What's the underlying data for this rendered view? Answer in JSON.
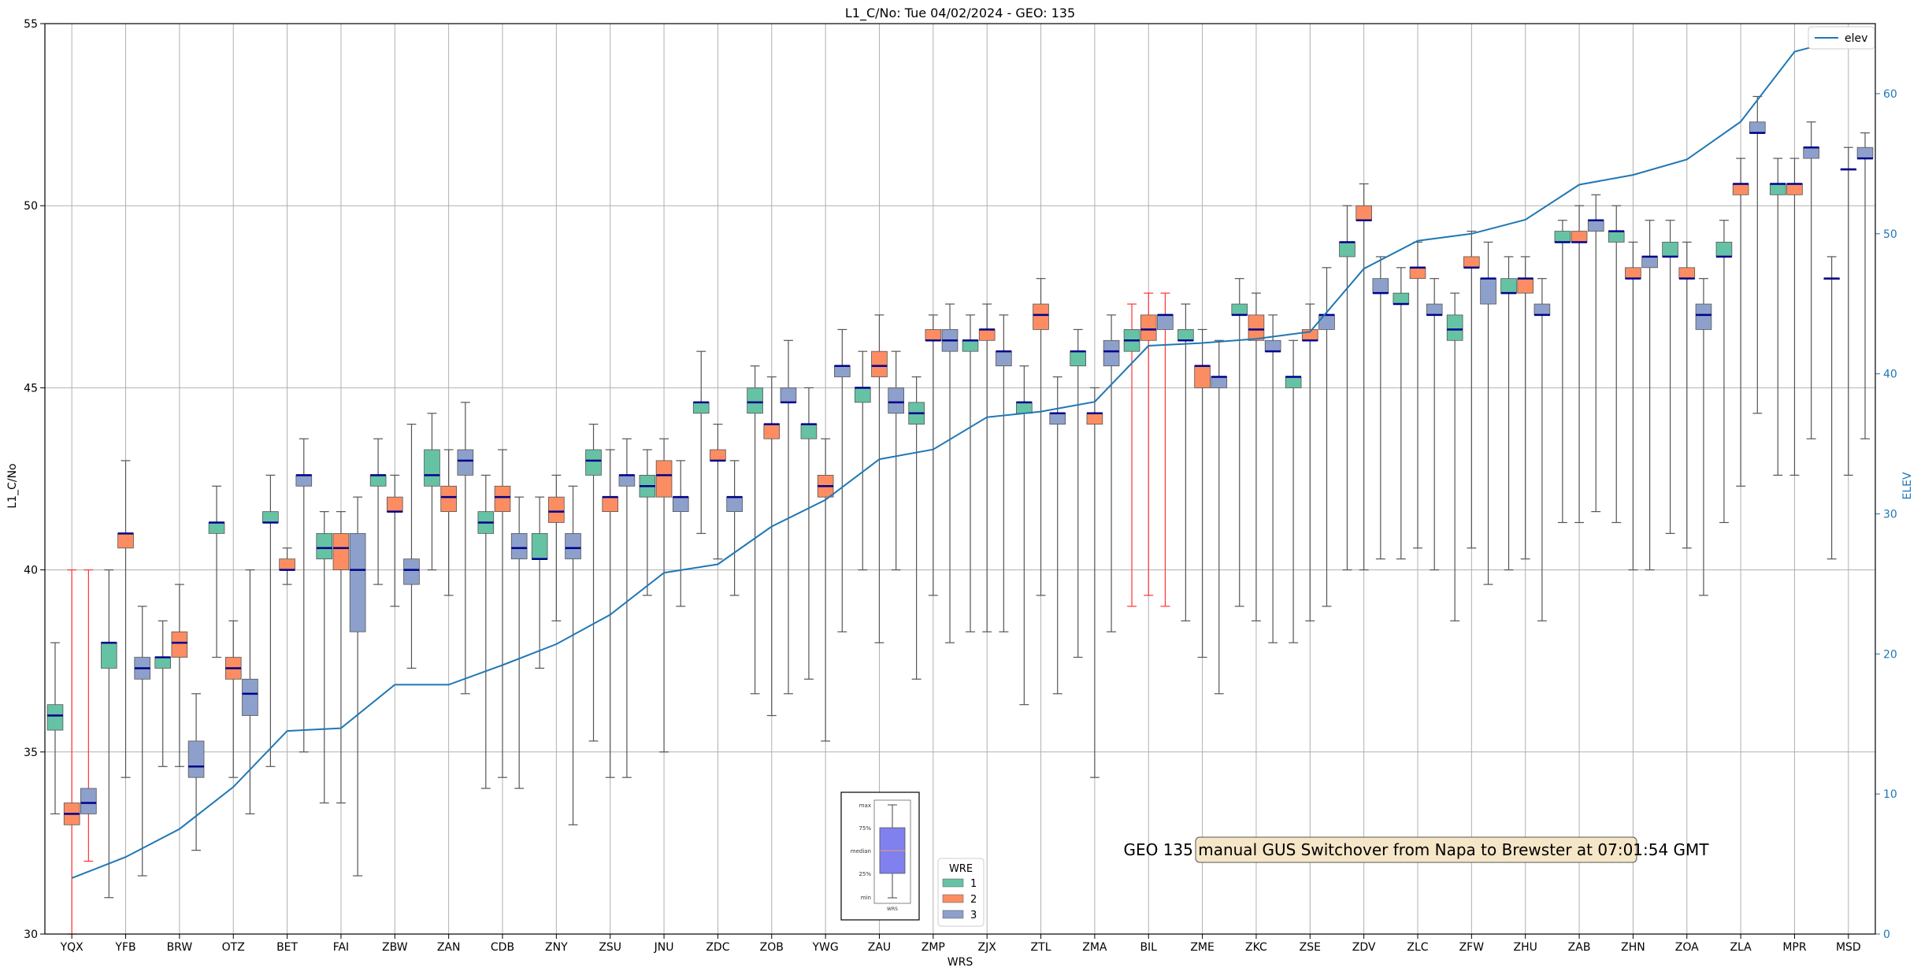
{
  "chart_data": {
    "type": "box",
    "title": "L1_C/No: Tue 04/02/2024 - GEO: 135",
    "xlabel": "WRS",
    "ylabel": "L1_C/No",
    "y2label": "ELEV",
    "ylim": [
      30,
      55
    ],
    "y2lim": [
      0,
      65
    ],
    "yticks": [
      "30",
      "35",
      "40",
      "45",
      "50",
      "55"
    ],
    "y2ticks": [
      "0",
      "10",
      "20",
      "30",
      "40",
      "50",
      "60"
    ],
    "grid": true,
    "legend_position": "top-right",
    "colors": {
      "1": "#66c2a5",
      "2": "#fc8d62",
      "3": "#8da0cb",
      "elev": "#1f77b4",
      "median": "#00008b",
      "bad_whisker": "#ff3333"
    },
    "categories": [
      "YQX",
      "YFB",
      "BRW",
      "OTZ",
      "BET",
      "FAI",
      "ZBW",
      "ZAN",
      "CDB",
      "ZNY",
      "ZSU",
      "JNU",
      "ZDC",
      "ZOB",
      "YWG",
      "ZAU",
      "ZMP",
      "ZJX",
      "ZTL",
      "ZMA",
      "BIL",
      "ZME",
      "ZKC",
      "ZSE",
      "ZDV",
      "ZLC",
      "ZFW",
      "ZHU",
      "ZAB",
      "ZHN",
      "ZOA",
      "ZLA",
      "MPR",
      "MSD"
    ],
    "boxes": [
      [
        {
          "wre": 1,
          "min": 33.3,
          "q1": 35.6,
          "med": 36.0,
          "q3": 36.3,
          "max": 38.0
        },
        {
          "wre": 2,
          "min": 30.0,
          "q1": 33.0,
          "med": 33.3,
          "q3": 33.6,
          "max": 40.0,
          "red": true
        },
        {
          "wre": 3,
          "min": 32.0,
          "q1": 33.3,
          "med": 33.6,
          "q3": 34.0,
          "max": 40.0,
          "red": true
        }
      ],
      [
        {
          "wre": 1,
          "min": 31.0,
          "q1": 37.3,
          "med": 38.0,
          "q3": 38.0,
          "max": 40.0
        },
        {
          "wre": 2,
          "min": 34.3,
          "q1": 40.6,
          "med": 41.0,
          "q3": 41.0,
          "max": 43.0
        },
        {
          "wre": 3,
          "min": 31.6,
          "q1": 37.0,
          "med": 37.3,
          "q3": 37.6,
          "max": 39.0
        }
      ],
      [
        {
          "wre": 1,
          "min": 34.6,
          "q1": 37.3,
          "med": 37.6,
          "q3": 37.6,
          "max": 38.6
        },
        {
          "wre": 2,
          "min": 34.6,
          "q1": 37.6,
          "med": 38.0,
          "q3": 38.3,
          "max": 39.6
        },
        {
          "wre": 3,
          "min": 32.3,
          "q1": 34.3,
          "med": 34.6,
          "q3": 35.3,
          "max": 36.6
        }
      ],
      [
        {
          "wre": 1,
          "min": 37.6,
          "q1": 41.0,
          "med": 41.3,
          "q3": 41.3,
          "max": 42.3
        },
        {
          "wre": 2,
          "min": 34.3,
          "q1": 37.0,
          "med": 37.3,
          "q3": 37.6,
          "max": 38.6
        },
        {
          "wre": 3,
          "min": 33.3,
          "q1": 36.0,
          "med": 36.6,
          "q3": 37.0,
          "max": 40.0
        }
      ],
      [
        {
          "wre": 1,
          "min": 34.6,
          "q1": 41.3,
          "med": 41.3,
          "q3": 41.6,
          "max": 42.6
        },
        {
          "wre": 2,
          "min": 39.6,
          "q1": 40.0,
          "med": 40.0,
          "q3": 40.3,
          "max": 40.6
        },
        {
          "wre": 3,
          "min": 35.0,
          "q1": 42.3,
          "med": 42.6,
          "q3": 42.6,
          "max": 43.6
        }
      ],
      [
        {
          "wre": 1,
          "min": 33.6,
          "q1": 40.3,
          "med": 40.6,
          "q3": 41.0,
          "max": 41.6
        },
        {
          "wre": 2,
          "min": 33.6,
          "q1": 40.0,
          "med": 40.6,
          "q3": 41.0,
          "max": 41.6
        },
        {
          "wre": 3,
          "min": 31.6,
          "q1": 38.3,
          "med": 40.0,
          "q3": 41.0,
          "max": 42.0
        }
      ],
      [
        {
          "wre": 1,
          "min": 39.6,
          "q1": 42.3,
          "med": 42.6,
          "q3": 42.6,
          "max": 43.6
        },
        {
          "wre": 2,
          "min": 39.0,
          "q1": 41.6,
          "med": 41.6,
          "q3": 42.0,
          "max": 42.6
        },
        {
          "wre": 3,
          "min": 37.3,
          "q1": 39.6,
          "med": 40.0,
          "q3": 40.3,
          "max": 44.0
        }
      ],
      [
        {
          "wre": 1,
          "min": 40.0,
          "q1": 42.3,
          "med": 42.6,
          "q3": 43.3,
          "max": 44.3
        },
        {
          "wre": 2,
          "min": 39.3,
          "q1": 41.6,
          "med": 42.0,
          "q3": 42.3,
          "max": 43.3
        },
        {
          "wre": 3,
          "min": 36.6,
          "q1": 42.6,
          "med": 43.0,
          "q3": 43.3,
          "max": 44.6
        }
      ],
      [
        {
          "wre": 1,
          "min": 34.0,
          "q1": 41.0,
          "med": 41.3,
          "q3": 41.6,
          "max": 42.6
        },
        {
          "wre": 2,
          "min": 34.3,
          "q1": 41.6,
          "med": 42.0,
          "q3": 42.3,
          "max": 43.3
        },
        {
          "wre": 3,
          "min": 34.0,
          "q1": 40.3,
          "med": 40.6,
          "q3": 41.0,
          "max": 42.0
        }
      ],
      [
        {
          "wre": 1,
          "min": 37.3,
          "q1": 40.3,
          "med": 40.3,
          "q3": 41.0,
          "max": 42.0
        },
        {
          "wre": 2,
          "min": 38.6,
          "q1": 41.3,
          "med": 41.6,
          "q3": 42.0,
          "max": 42.6
        },
        {
          "wre": 3,
          "min": 33.0,
          "q1": 40.3,
          "med": 40.6,
          "q3": 41.0,
          "max": 42.3
        }
      ],
      [
        {
          "wre": 1,
          "min": 35.3,
          "q1": 42.6,
          "med": 43.0,
          "q3": 43.3,
          "max": 44.0
        },
        {
          "wre": 2,
          "min": 34.3,
          "q1": 41.6,
          "med": 42.0,
          "q3": 42.0,
          "max": 43.3
        },
        {
          "wre": 3,
          "min": 34.3,
          "q1": 42.3,
          "med": 42.6,
          "q3": 42.6,
          "max": 43.6
        }
      ],
      [
        {
          "wre": 1,
          "min": 39.3,
          "q1": 42.0,
          "med": 42.3,
          "q3": 42.6,
          "max": 43.3
        },
        {
          "wre": 2,
          "min": 35.0,
          "q1": 42.0,
          "med": 42.6,
          "q3": 43.0,
          "max": 43.6
        },
        {
          "wre": 3,
          "min": 39.0,
          "q1": 41.6,
          "med": 42.0,
          "q3": 42.0,
          "max": 43.0
        }
      ],
      [
        {
          "wre": 1,
          "min": 41.0,
          "q1": 44.3,
          "med": 44.6,
          "q3": 44.6,
          "max": 46.0
        },
        {
          "wre": 2,
          "min": 40.3,
          "q1": 43.0,
          "med": 43.0,
          "q3": 43.3,
          "max": 44.0
        },
        {
          "wre": 3,
          "min": 39.3,
          "q1": 41.6,
          "med": 42.0,
          "q3": 42.0,
          "max": 43.0
        }
      ],
      [
        {
          "wre": 1,
          "min": 36.6,
          "q1": 44.3,
          "med": 44.6,
          "q3": 45.0,
          "max": 45.6
        },
        {
          "wre": 2,
          "min": 36.0,
          "q1": 43.6,
          "med": 44.0,
          "q3": 44.0,
          "max": 45.3
        },
        {
          "wre": 3,
          "min": 36.6,
          "q1": 44.6,
          "med": 44.6,
          "q3": 45.0,
          "max": 46.3
        }
      ],
      [
        {
          "wre": 1,
          "min": 37.0,
          "q1": 43.6,
          "med": 44.0,
          "q3": 44.0,
          "max": 45.0
        },
        {
          "wre": 2,
          "min": 35.3,
          "q1": 42.0,
          "med": 42.3,
          "q3": 42.6,
          "max": 43.6
        },
        {
          "wre": 3,
          "min": 38.3,
          "q1": 45.3,
          "med": 45.6,
          "q3": 45.6,
          "max": 46.6
        }
      ],
      [
        {
          "wre": 1,
          "min": 40.0,
          "q1": 44.6,
          "med": 45.0,
          "q3": 45.0,
          "max": 46.0
        },
        {
          "wre": 2,
          "min": 38.0,
          "q1": 45.3,
          "med": 45.6,
          "q3": 46.0,
          "max": 47.0
        },
        {
          "wre": 3,
          "min": 40.0,
          "q1": 44.3,
          "med": 44.6,
          "q3": 45.0,
          "max": 46.0
        }
      ],
      [
        {
          "wre": 1,
          "min": 37.0,
          "q1": 44.0,
          "med": 44.3,
          "q3": 44.6,
          "max": 45.3
        },
        {
          "wre": 2,
          "min": 39.3,
          "q1": 46.3,
          "med": 46.3,
          "q3": 46.6,
          "max": 47.0
        },
        {
          "wre": 3,
          "min": 38.0,
          "q1": 46.0,
          "med": 46.3,
          "q3": 46.6,
          "max": 47.3
        }
      ],
      [
        {
          "wre": 1,
          "min": 38.3,
          "q1": 46.0,
          "med": 46.3,
          "q3": 46.3,
          "max": 47.0
        },
        {
          "wre": 2,
          "min": 38.3,
          "q1": 46.3,
          "med": 46.6,
          "q3": 46.6,
          "max": 47.3
        },
        {
          "wre": 3,
          "min": 38.3,
          "q1": 45.6,
          "med": 46.0,
          "q3": 46.0,
          "max": 47.0
        }
      ],
      [
        {
          "wre": 1,
          "min": 36.3,
          "q1": 44.3,
          "med": 44.6,
          "q3": 44.6,
          "max": 45.6
        },
        {
          "wre": 2,
          "min": 39.3,
          "q1": 46.6,
          "med": 47.0,
          "q3": 47.3,
          "max": 48.0
        },
        {
          "wre": 3,
          "min": 36.6,
          "q1": 44.0,
          "med": 44.3,
          "q3": 44.3,
          "max": 45.3
        }
      ],
      [
        {
          "wre": 1,
          "min": 37.6,
          "q1": 45.6,
          "med": 46.0,
          "q3": 46.0,
          "max": 46.6
        },
        {
          "wre": 2,
          "min": 34.3,
          "q1": 44.0,
          "med": 44.3,
          "q3": 44.3,
          "max": 45.0
        },
        {
          "wre": 3,
          "min": 38.3,
          "q1": 45.6,
          "med": 46.0,
          "q3": 46.3,
          "max": 47.0
        }
      ],
      [
        {
          "wre": 1,
          "min": 39.0,
          "q1": 46.0,
          "med": 46.3,
          "q3": 46.6,
          "max": 47.3,
          "red": true
        },
        {
          "wre": 2,
          "min": 39.3,
          "q1": 46.3,
          "med": 46.6,
          "q3": 47.0,
          "max": 47.6,
          "red": true
        },
        {
          "wre": 3,
          "min": 39.0,
          "q1": 46.6,
          "med": 47.0,
          "q3": 47.0,
          "max": 47.6,
          "red": true
        }
      ],
      [
        {
          "wre": 1,
          "min": 38.6,
          "q1": 46.3,
          "med": 46.3,
          "q3": 46.6,
          "max": 47.3
        },
        {
          "wre": 2,
          "min": 37.6,
          "q1": 45.0,
          "med": 45.6,
          "q3": 45.6,
          "max": 46.6
        },
        {
          "wre": 3,
          "min": 36.6,
          "q1": 45.0,
          "med": 45.3,
          "q3": 45.3,
          "max": 46.3
        }
      ],
      [
        {
          "wre": 1,
          "min": 39.0,
          "q1": 47.0,
          "med": 47.0,
          "q3": 47.3,
          "max": 48.0
        },
        {
          "wre": 2,
          "min": 38.6,
          "q1": 46.3,
          "med": 46.6,
          "q3": 47.0,
          "max": 47.6
        },
        {
          "wre": 3,
          "min": 38.0,
          "q1": 46.0,
          "med": 46.0,
          "q3": 46.3,
          "max": 47.0
        }
      ],
      [
        {
          "wre": 1,
          "min": 38.0,
          "q1": 45.0,
          "med": 45.3,
          "q3": 45.3,
          "max": 46.3
        },
        {
          "wre": 2,
          "min": 38.6,
          "q1": 46.3,
          "med": 46.3,
          "q3": 46.6,
          "max": 47.3
        },
        {
          "wre": 3,
          "min": 39.0,
          "q1": 46.6,
          "med": 47.0,
          "q3": 47.0,
          "max": 48.3
        }
      ],
      [
        {
          "wre": 1,
          "min": 40.0,
          "q1": 48.6,
          "med": 49.0,
          "q3": 49.0,
          "max": 50.0
        },
        {
          "wre": 2,
          "min": 40.0,
          "q1": 49.6,
          "med": 49.6,
          "q3": 50.0,
          "max": 50.6
        },
        {
          "wre": 3,
          "min": 40.3,
          "q1": 47.6,
          "med": 47.6,
          "q3": 48.0,
          "max": 48.6
        }
      ],
      [
        {
          "wre": 1,
          "min": 40.3,
          "q1": 47.3,
          "med": 47.3,
          "q3": 47.6,
          "max": 48.3
        },
        {
          "wre": 2,
          "min": 40.6,
          "q1": 48.0,
          "med": 48.3,
          "q3": 48.3,
          "max": 49.0
        },
        {
          "wre": 3,
          "min": 40.0,
          "q1": 47.0,
          "med": 47.0,
          "q3": 47.3,
          "max": 48.0
        }
      ],
      [
        {
          "wre": 1,
          "min": 38.6,
          "q1": 46.3,
          "med": 46.6,
          "q3": 47.0,
          "max": 47.6
        },
        {
          "wre": 2,
          "min": 40.6,
          "q1": 48.3,
          "med": 48.3,
          "q3": 48.6,
          "max": 49.3
        },
        {
          "wre": 3,
          "min": 39.6,
          "q1": 47.3,
          "med": 48.0,
          "q3": 48.0,
          "max": 49.0
        }
      ],
      [
        {
          "wre": 1,
          "min": 40.0,
          "q1": 47.6,
          "med": 47.6,
          "q3": 48.0,
          "max": 48.6
        },
        {
          "wre": 2,
          "min": 40.3,
          "q1": 47.6,
          "med": 48.0,
          "q3": 48.0,
          "max": 48.6
        },
        {
          "wre": 3,
          "min": 38.6,
          "q1": 47.0,
          "med": 47.0,
          "q3": 47.3,
          "max": 48.0
        }
      ],
      [
        {
          "wre": 1,
          "min": 41.3,
          "q1": 49.0,
          "med": 49.0,
          "q3": 49.3,
          "max": 49.6
        },
        {
          "wre": 2,
          "min": 41.3,
          "q1": 49.0,
          "med": 49.0,
          "q3": 49.3,
          "max": 50.0
        },
        {
          "wre": 3,
          "min": 41.6,
          "q1": 49.3,
          "med": 49.6,
          "q3": 49.6,
          "max": 50.3
        }
      ],
      [
        {
          "wre": 1,
          "min": 41.3,
          "q1": 49.0,
          "med": 49.3,
          "q3": 49.3,
          "max": 50.0
        },
        {
          "wre": 2,
          "min": 40.0,
          "q1": 48.0,
          "med": 48.0,
          "q3": 48.3,
          "max": 49.0
        },
        {
          "wre": 3,
          "min": 40.0,
          "q1": 48.3,
          "med": 48.6,
          "q3": 48.6,
          "max": 49.6
        }
      ],
      [
        {
          "wre": 1,
          "min": 41.0,
          "q1": 48.6,
          "med": 48.6,
          "q3": 49.0,
          "max": 49.6
        },
        {
          "wre": 2,
          "min": 40.6,
          "q1": 48.0,
          "med": 48.0,
          "q3": 48.3,
          "max": 49.0
        },
        {
          "wre": 3,
          "min": 39.3,
          "q1": 46.6,
          "med": 47.0,
          "q3": 47.3,
          "max": 48.0
        }
      ],
      [
        {
          "wre": 1,
          "min": 41.3,
          "q1": 48.6,
          "med": 48.6,
          "q3": 49.0,
          "max": 49.6
        },
        {
          "wre": 2,
          "min": 42.3,
          "q1": 50.3,
          "med": 50.6,
          "q3": 50.6,
          "max": 51.3
        },
        {
          "wre": 3,
          "min": 44.3,
          "q1": 52.0,
          "med": 52.0,
          "q3": 52.3,
          "max": 53.0
        }
      ],
      [
        {
          "wre": 1,
          "min": 42.6,
          "q1": 50.3,
          "med": 50.6,
          "q3": 50.6,
          "max": 51.3
        },
        {
          "wre": 2,
          "min": 42.6,
          "q1": 50.3,
          "med": 50.6,
          "q3": 50.6,
          "max": 51.3
        },
        {
          "wre": 3,
          "min": 43.6,
          "q1": 51.3,
          "med": 51.6,
          "q3": 51.6,
          "max": 52.3
        }
      ],
      [
        {
          "wre": 1,
          "min": 40.3,
          "q1": 48.0,
          "med": 48.0,
          "q3": 48.0,
          "max": 48.6
        },
        {
          "wre": 2,
          "min": 42.6,
          "q1": 51.0,
          "med": 51.0,
          "q3": 51.0,
          "max": 51.6
        },
        {
          "wre": 3,
          "min": 43.6,
          "q1": 51.3,
          "med": 51.3,
          "q3": 51.6,
          "max": 52.0
        }
      ]
    ],
    "elev": [
      4.0,
      5.5,
      7.5,
      10.5,
      14.5,
      14.7,
      17.8,
      17.8,
      19.2,
      20.7,
      22.8,
      25.8,
      26.4,
      29.1,
      31.0,
      33.9,
      34.6,
      36.9,
      37.3,
      38.0,
      42.0,
      42.2,
      42.5,
      43.0,
      47.5,
      49.5,
      50.0,
      51.0,
      53.5,
      54.2,
      55.3,
      58.0,
      63.0,
      64.0
    ],
    "legend": {
      "title": "WRE",
      "items": [
        "1",
        "2",
        "3"
      ]
    },
    "elev_legend": "elev",
    "annotation": "GEO 135 manual GUS Switchover from Napa to Brewster at 07:01:54 GMT",
    "key_inset": {
      "labels": [
        "max",
        "75%",
        "median",
        "25%",
        "min"
      ],
      "xlabel": "WRS"
    }
  }
}
